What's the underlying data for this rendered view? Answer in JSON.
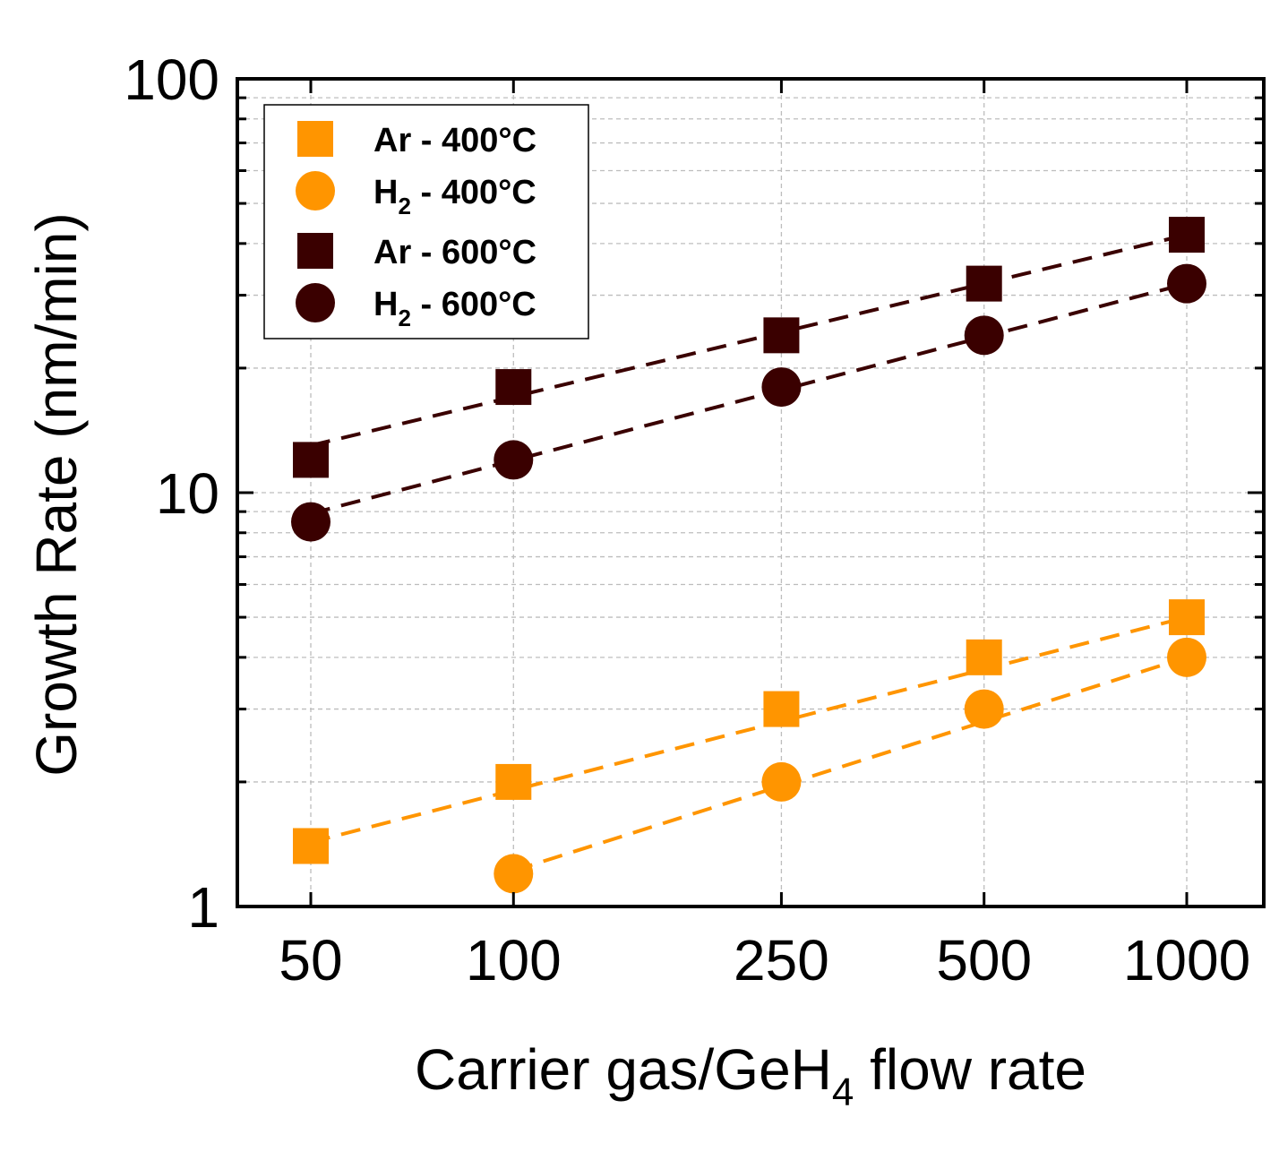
{
  "chart_data": {
    "type": "scatter",
    "x_scale": "log",
    "y_scale": "log",
    "x": [
      50,
      100,
      250,
      500,
      1000
    ],
    "xticks": [
      "50",
      "100",
      "250",
      "500",
      "1000"
    ],
    "yticks": [
      "1",
      "10",
      "100"
    ],
    "xlim": [
      40,
      1300
    ],
    "ylim": [
      1,
      100
    ],
    "xlabel_parts": [
      "Carrier gas/GeH",
      "4",
      " flow rate"
    ],
    "ylabel": "Growth Rate (nm/min)",
    "grid": true,
    "legend_position": "top-left",
    "series": [
      {
        "name": "Ar - 400°C",
        "label_parts": [
          "Ar - 400°C"
        ],
        "marker": "square",
        "color": "#FF9500",
        "x": [
          50,
          100,
          250,
          500,
          1000
        ],
        "values": [
          1.4,
          2.0,
          3.0,
          4.0,
          5.0
        ],
        "fit_x": [
          50,
          1000
        ],
        "fit_y": [
          1.43,
          5.0
        ]
      },
      {
        "name": "H2 - 400°C",
        "label_parts": [
          "H",
          "2",
          " - 400°C"
        ],
        "marker": "circle",
        "color": "#FF9500",
        "x": [
          100,
          250,
          500,
          1000
        ],
        "values": [
          1.2,
          2.0,
          3.0,
          4.0
        ],
        "fit_x": [
          100,
          1000
        ],
        "fit_y": [
          1.22,
          4.0
        ]
      },
      {
        "name": "Ar - 600°C",
        "label_parts": [
          "Ar - 600°C"
        ],
        "marker": "square",
        "color": "#3A0000",
        "x": [
          50,
          100,
          250,
          500,
          1000
        ],
        "values": [
          12,
          18,
          24,
          32,
          42
        ],
        "fit_x": [
          50,
          1000
        ],
        "fit_y": [
          13.0,
          42
        ]
      },
      {
        "name": "H2 - 600°C",
        "label_parts": [
          "H",
          "2",
          " - 600°C"
        ],
        "marker": "circle",
        "color": "#3A0000",
        "x": [
          50,
          100,
          250,
          500,
          1000
        ],
        "values": [
          8.5,
          12,
          18,
          24,
          32
        ],
        "fit_x": [
          50,
          1000
        ],
        "fit_y": [
          8.9,
          32
        ]
      }
    ]
  }
}
